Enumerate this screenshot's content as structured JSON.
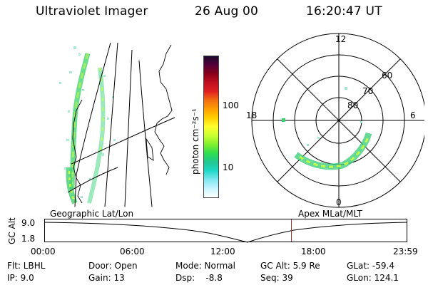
{
  "header": {
    "instrument": "Ultraviolet Imager",
    "date": "26 Aug 00",
    "time": "16:20:47 UT"
  },
  "colorbar": {
    "label": "photon cm⁻²s⁻¹",
    "ticks": [
      "100",
      "10"
    ],
    "colors": [
      "#1a0a2a",
      "#55003a",
      "#8a001a",
      "#c01020",
      "#e02020",
      "#f07010",
      "#ffa000",
      "#ffd000",
      "#ffff30",
      "#c8ff30",
      "#80ee30",
      "#30dd50",
      "#20c890",
      "#20d8c8",
      "#80e8f0",
      "#c8f4ff",
      "#ffffff"
    ]
  },
  "polar": {
    "mlt_labels": {
      "top": "12",
      "bottom": "0",
      "left": "18",
      "right": "6"
    },
    "lat_labels": [
      "60",
      "70",
      "80"
    ]
  },
  "timeline": {
    "title_left": "Geographic Lat/Lon",
    "title_right": "Apex MLat/MLT",
    "ylabel": "GC Alt",
    "yticks": [
      "9.0",
      "1.8"
    ],
    "xticks": [
      "00:00",
      "06:00",
      "12:00",
      "18:00",
      "23:59"
    ],
    "current_time_fraction": 0.6811,
    "marker_color": "#b03030"
  },
  "footer": {
    "col1": [
      "Flt:  LBHL",
      "IP:  9.0"
    ],
    "col2": [
      "Door: Open",
      "Gain: 13"
    ],
    "col3": [
      "Mode: Normal",
      "Dsp:    -8.8"
    ],
    "col4": [
      "GC Alt: 5.9 Re",
      "Seq: 39"
    ],
    "col5": [
      "GLat: -59.4",
      "GLon: 124.1"
    ]
  }
}
